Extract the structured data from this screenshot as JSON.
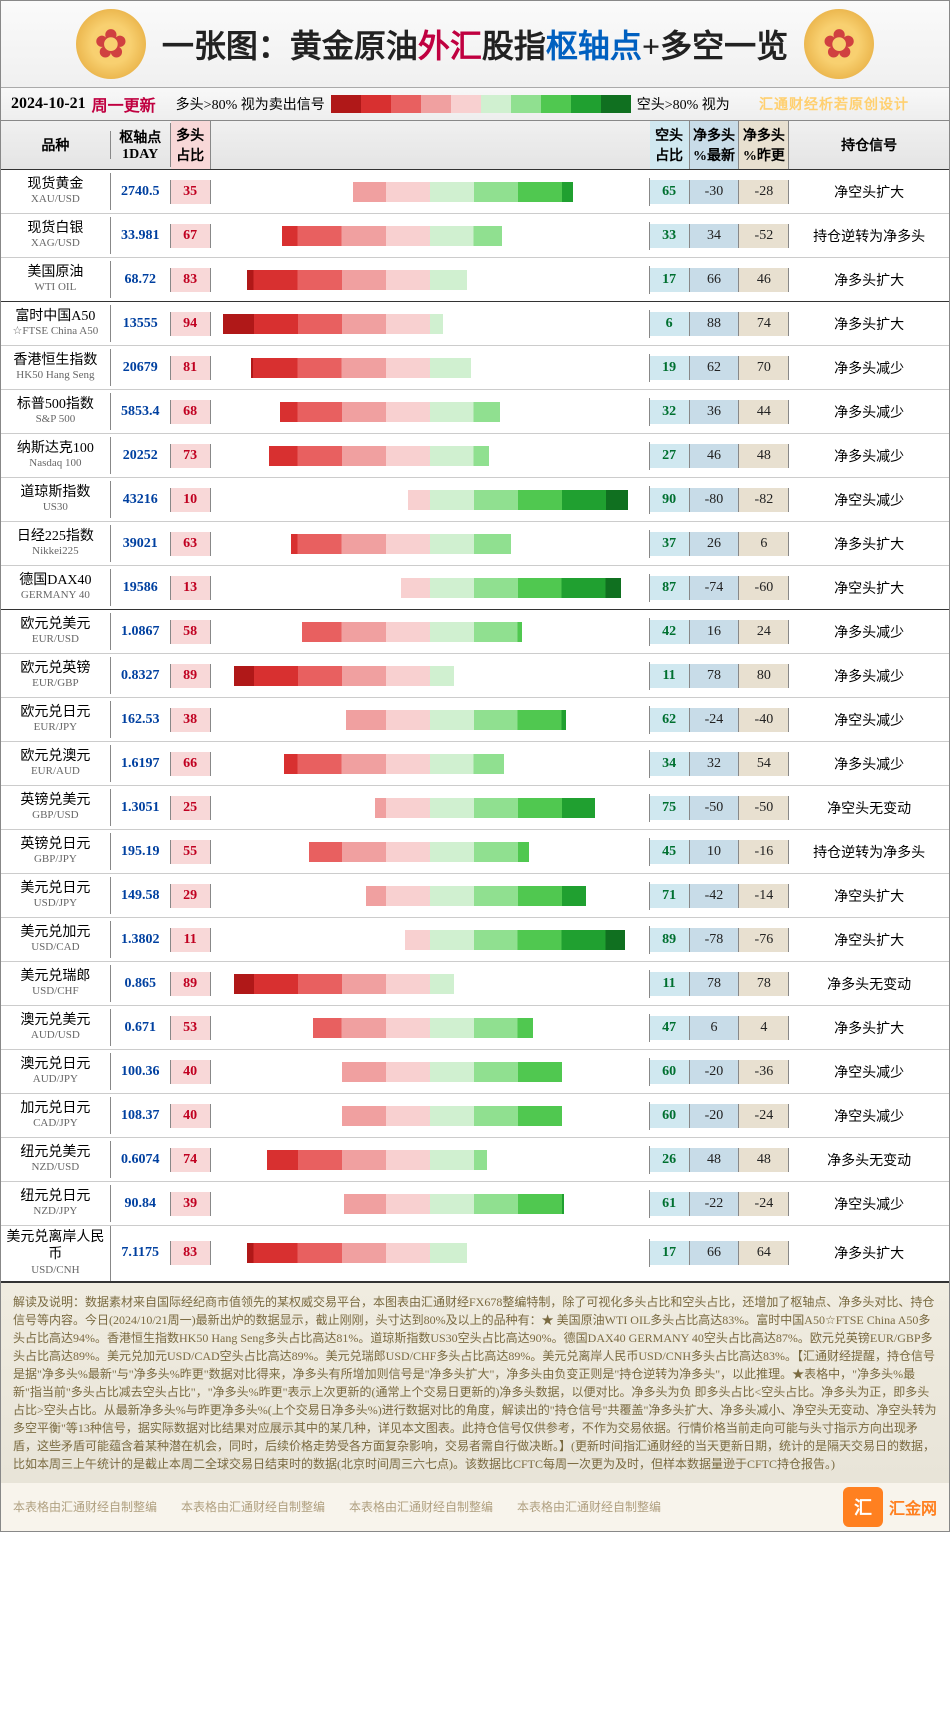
{
  "title": {
    "prefix": "一张图：",
    "mid1": "黄金原油",
    "accent1": "外汇",
    "mid2": "股指",
    "accent2": "枢轴点",
    "plus": "+",
    "suffix": "多空一览"
  },
  "date": "2024-10-21",
  "weekday": "周一更新",
  "legend": {
    "left_label": "多头>80% 视为卖出信号",
    "right_label": "空头>80% 视为"
  },
  "watermark": "汇通财经析若原创设计",
  "columns": {
    "name": "品种",
    "pivot": "枢轴点\n1DAY",
    "long": "多头\n占比",
    "chart": "",
    "short": "空头\n占比",
    "netnow": "净多头\n%最新",
    "netprev": "净多头\n%昨更",
    "signal": "持仓信号"
  },
  "scale_colors": [
    "#b01818",
    "#d83030",
    "#e86060",
    "#f0a0a0",
    "#f8d0d0",
    "#d0f0d0",
    "#90e090",
    "#50c850",
    "#20a030",
    "#107020"
  ],
  "rows": [
    {
      "cn": "现货黄金",
      "en": "XAU/USD",
      "pivot": "2740.5",
      "long": 35,
      "short": 65,
      "netnow": "-30",
      "netprev": "-28",
      "signal": "净空头扩大",
      "group_end": false
    },
    {
      "cn": "现货白银",
      "en": "XAG/USD",
      "pivot": "33.981",
      "long": 67,
      "short": 33,
      "netnow": "34",
      "netprev": "-52",
      "signal": "持仓逆转为净多头",
      "group_end": false
    },
    {
      "cn": "美国原油",
      "en": "WTI OIL",
      "pivot": "68.72",
      "long": 83,
      "short": 17,
      "netnow": "66",
      "netprev": "46",
      "signal": "净多头扩大",
      "group_end": true
    },
    {
      "cn": "富时中国A50",
      "en": "☆FTSE China A50",
      "pivot": "13555",
      "long": 94,
      "short": 6,
      "netnow": "88",
      "netprev": "74",
      "signal": "净多头扩大",
      "group_end": false
    },
    {
      "cn": "香港恒生指数",
      "en": "HK50 Hang Seng",
      "pivot": "20679",
      "long": 81,
      "short": 19,
      "netnow": "62",
      "netprev": "70",
      "signal": "净多头减少",
      "group_end": false
    },
    {
      "cn": "标普500指数",
      "en": "S&P 500",
      "pivot": "5853.4",
      "long": 68,
      "short": 32,
      "netnow": "36",
      "netprev": "44",
      "signal": "净多头减少",
      "group_end": false
    },
    {
      "cn": "纳斯达克100",
      "en": "Nasdaq 100",
      "pivot": "20252",
      "long": 73,
      "short": 27,
      "netnow": "46",
      "netprev": "48",
      "signal": "净多头减少",
      "group_end": false
    },
    {
      "cn": "道琼斯指数",
      "en": "US30",
      "pivot": "43216",
      "long": 10,
      "short": 90,
      "netnow": "-80",
      "netprev": "-82",
      "signal": "净空头减少",
      "group_end": false
    },
    {
      "cn": "日经225指数",
      "en": "Nikkei225",
      "pivot": "39021",
      "long": 63,
      "short": 37,
      "netnow": "26",
      "netprev": "6",
      "signal": "净多头扩大",
      "group_end": false
    },
    {
      "cn": "德国DAX40",
      "en": "GERMANY 40",
      "pivot": "19586",
      "long": 13,
      "short": 87,
      "netnow": "-74",
      "netprev": "-60",
      "signal": "净空头扩大",
      "group_end": true
    },
    {
      "cn": "欧元兑美元",
      "en": "EUR/USD",
      "pivot": "1.0867",
      "long": 58,
      "short": 42,
      "netnow": "16",
      "netprev": "24",
      "signal": "净多头减少",
      "group_end": false
    },
    {
      "cn": "欧元兑英镑",
      "en": "EUR/GBP",
      "pivot": "0.8327",
      "long": 89,
      "short": 11,
      "netnow": "78",
      "netprev": "80",
      "signal": "净多头减少",
      "group_end": false
    },
    {
      "cn": "欧元兑日元",
      "en": "EUR/JPY",
      "pivot": "162.53",
      "long": 38,
      "short": 62,
      "netnow": "-24",
      "netprev": "-40",
      "signal": "净空头减少",
      "group_end": false
    },
    {
      "cn": "欧元兑澳元",
      "en": "EUR/AUD",
      "pivot": "1.6197",
      "long": 66,
      "short": 34,
      "netnow": "32",
      "netprev": "54",
      "signal": "净多头减少",
      "group_end": false
    },
    {
      "cn": "英镑兑美元",
      "en": "GBP/USD",
      "pivot": "1.3051",
      "long": 25,
      "short": 75,
      "netnow": "-50",
      "netprev": "-50",
      "signal": "净空头无变动",
      "group_end": false
    },
    {
      "cn": "英镑兑日元",
      "en": "GBP/JPY",
      "pivot": "195.19",
      "long": 55,
      "short": 45,
      "netnow": "10",
      "netprev": "-16",
      "signal": "持仓逆转为净多头",
      "group_end": false
    },
    {
      "cn": "美元兑日元",
      "en": "USD/JPY",
      "pivot": "149.58",
      "long": 29,
      "short": 71,
      "netnow": "-42",
      "netprev": "-14",
      "signal": "净空头扩大",
      "group_end": false
    },
    {
      "cn": "美元兑加元",
      "en": "USD/CAD",
      "pivot": "1.3802",
      "long": 11,
      "short": 89,
      "netnow": "-78",
      "netprev": "-76",
      "signal": "净空头扩大",
      "group_end": false
    },
    {
      "cn": "美元兑瑞郎",
      "en": "USD/CHF",
      "pivot": "0.865",
      "long": 89,
      "short": 11,
      "netnow": "78",
      "netprev": "78",
      "signal": "净多头无变动",
      "group_end": false
    },
    {
      "cn": "澳元兑美元",
      "en": "AUD/USD",
      "pivot": "0.671",
      "long": 53,
      "short": 47,
      "netnow": "6",
      "netprev": "4",
      "signal": "净多头扩大",
      "group_end": false
    },
    {
      "cn": "澳元兑日元",
      "en": "AUD/JPY",
      "pivot": "100.36",
      "long": 40,
      "short": 60,
      "netnow": "-20",
      "netprev": "-36",
      "signal": "净空头减少",
      "group_end": false
    },
    {
      "cn": "加元兑日元",
      "en": "CAD/JPY",
      "pivot": "108.37",
      "long": 40,
      "short": 60,
      "netnow": "-20",
      "netprev": "-24",
      "signal": "净空头减少",
      "group_end": false
    },
    {
      "cn": "纽元兑美元",
      "en": "NZD/USD",
      "pivot": "0.6074",
      "long": 74,
      "short": 26,
      "netnow": "48",
      "netprev": "48",
      "signal": "净多头无变动",
      "group_end": false
    },
    {
      "cn": "纽元兑日元",
      "en": "NZD/JPY",
      "pivot": "90.84",
      "long": 39,
      "short": 61,
      "netnow": "-22",
      "netprev": "-24",
      "signal": "净空头减少",
      "group_end": false
    },
    {
      "cn": "美元兑离岸人民币",
      "en": "USD/CNH",
      "pivot": "7.1175",
      "long": 83,
      "short": 17,
      "netnow": "66",
      "netprev": "64",
      "signal": "净多头扩大",
      "group_end": true
    }
  ],
  "chart_style": {
    "bar_width_scale": 2.2,
    "red_bands": [
      "#b01818",
      "#d83030",
      "#e86060",
      "#f0a0a0",
      "#f8d0d0"
    ],
    "green_bands": [
      "#d0f0d0",
      "#90e090",
      "#50c850",
      "#20a030",
      "#107020"
    ]
  },
  "footer_text": "解读及说明：数据素材来自国际经纪商市值领先的某权威交易平台，本图表由汇通财经FX678整编特制，除了可视化多头占比和空头占比，还增加了枢轴点、净多头对比、持仓信号等内容。今日(2024/10/21周一)最新出炉的数据显示，截止刚刚，头寸达到80%及以上的品种有：★ 美国原油WTI OIL多头占比高达83%。富时中国A50☆FTSE China A50多头占比高达94%。香港恒生指数HK50 Hang Seng多头占比高达81%。道琼斯指数US30空头占比高达90%。德国DAX40 GERMANY 40空头占比高达87%。欧元兑英镑EUR/GBP多头占比高达89%。美元兑加元USD/CAD空头占比高达89%。美元兑瑞郎USD/CHF多头占比高达89%。美元兑离岸人民币USD/CNH多头占比高达83%。【汇通财经提醒，持仓信号是据\"净多头%最新\"与\"净多头%昨更\"数据对比得来，净多头有所增加则信号是\"净多头扩大\"，净多头由负变正则是\"持仓逆转为净多头\"，以此推理。★表格中，\"净多头%最新\"指当前\"多头占比减去空头占比\"，\"净多头%昨更\"表示上次更新的(通常上个交易日更新的)净多头数据，以便对比。净多头为负 即多头占比<空头占比。净多头为正，即多头占比>空头占比。从最新净多头%与昨更净多头%(上个交易日净多头%)进行数据对比的角度，解读出的\"持仓信号\"共覆盖\"净多头扩大、净多头减小、净空头无变动、净空头转为多空平衡\"等13种信号，据实际数据对比结果对应展示其中的某几种，详见本文图表。此持仓信号仅供参考，不作为交易依据。行情价格当前走向可能与头寸指示方向出现矛盾，这些矛盾可能蕴含着某种潜在机会，同时，后续价格走势受各方面复杂影响，交易者需自行做决断。】(更新时间指汇通财经的当天更新日期，统计的是隔天交易日的数据，比如本周三上午统计的是截止本周二全球交易日结束时的数据(北京时间周三六七点)。该数据比CFTC每周一次更为及时，但样本数据量逊于CFTC持仓报告。)",
  "footer_credits": "本表格由汇通财经自制整编　　本表格由汇通财经自制整编　　本表格由汇通财经自制整编　　本表格由汇通财经自制整编",
  "footer_site": "汇金网"
}
